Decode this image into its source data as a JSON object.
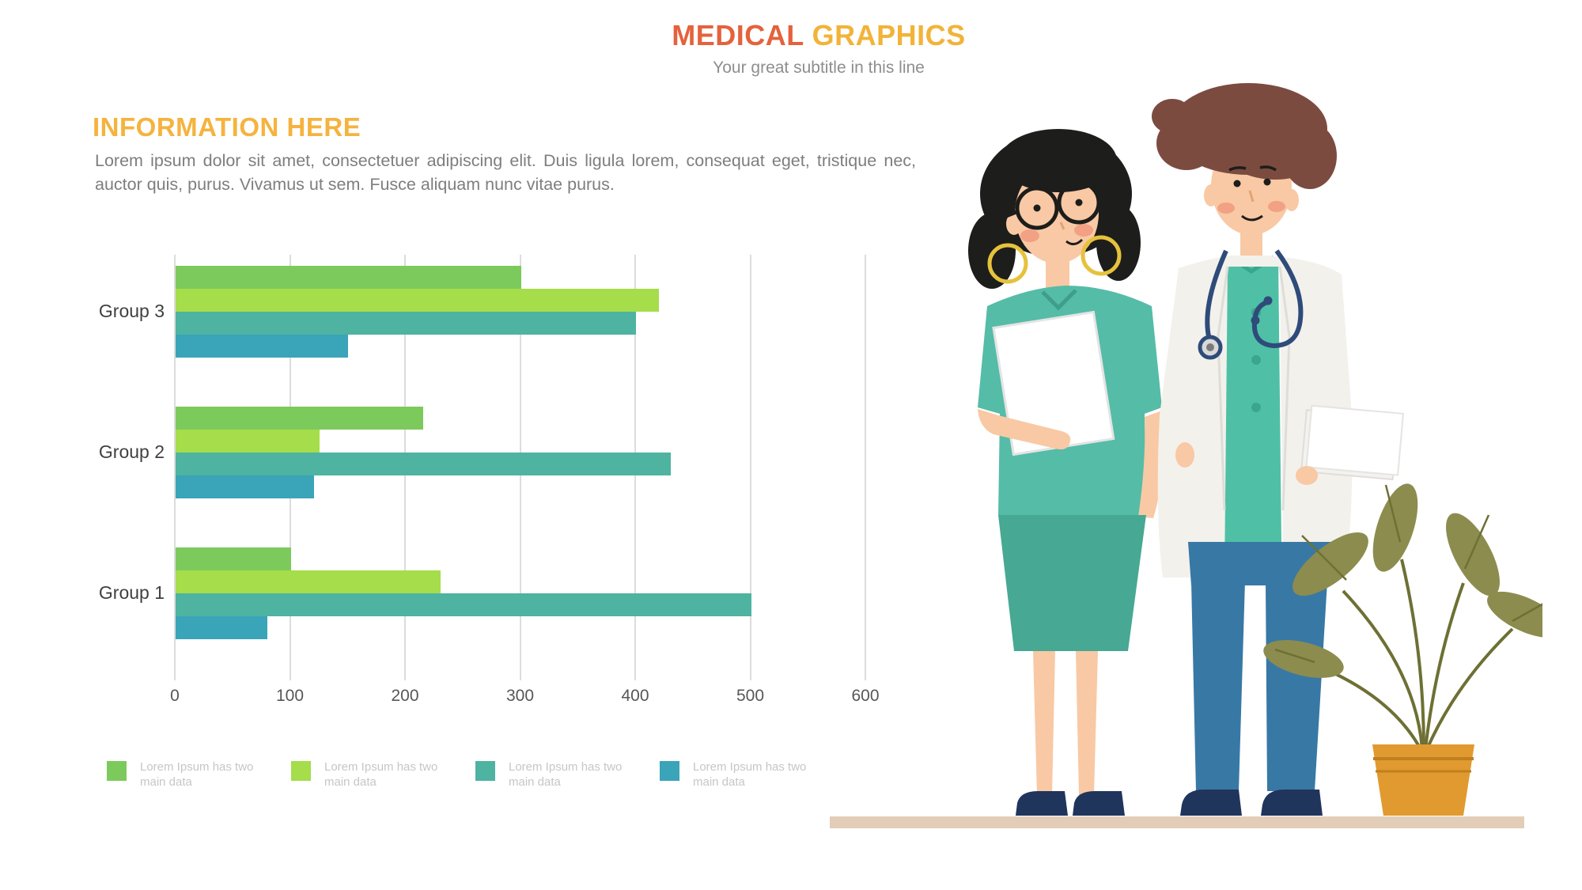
{
  "header": {
    "title_primary": "MEDICAL",
    "title_secondary": "GRAPHICS",
    "subtitle": "Your great subtitle in this line",
    "title_primary_color": "#E4623C",
    "title_secondary_color": "#F2B338"
  },
  "info": {
    "heading": "INFORMATION HERE",
    "heading_color": "#F5B33E",
    "body": "Lorem ipsum dolor sit amet, consectetuer adipiscing elit. Duis ligula lorem, consequat eget, tristique nec, auctor quis, purus. Vivamus ut sem. Fusce aliquam nunc vitae purus."
  },
  "chart_data": {
    "type": "bar",
    "orientation": "horizontal",
    "title": "",
    "categories": [
      "Group 3",
      "Group 2",
      "Group 1"
    ],
    "series": [
      {
        "legend_label": "Lorem Ipsum has two main data",
        "color": "#7CCA5C",
        "values": [
          300,
          215,
          100
        ]
      },
      {
        "legend_label": "Lorem Ipsum has two main data",
        "color": "#A5DD4B",
        "values": [
          420,
          125,
          230
        ]
      },
      {
        "legend_label": "Lorem Ipsum has two main data",
        "color": "#4EB3A0",
        "values": [
          400,
          430,
          500
        ]
      },
      {
        "legend_label": "Lorem Ipsum has two main data",
        "color": "#3AA4B9",
        "values": [
          150,
          120,
          80
        ]
      }
    ],
    "xlim": [
      0,
      600
    ],
    "xticks": [
      "0",
      "100",
      "200",
      "300",
      "400",
      "500",
      "600"
    ],
    "grid": "vertical-gridlines",
    "gridline_color": "#DCDCDC",
    "legend_position": "bottom-left"
  },
  "legend": {
    "items": [
      {
        "label": "Lorem Ipsum has two main data",
        "color": "#7CCA5C"
      },
      {
        "label": "Lorem Ipsum has two main data",
        "color": "#A5DD4B"
      },
      {
        "label": "Lorem Ipsum has two main data",
        "color": "#4EB3A0"
      },
      {
        "label": "Lorem Ipsum has two main data",
        "color": "#3AA4B9"
      }
    ]
  },
  "illustration": {
    "description": "Two cartoon medical professionals (nurse with clipboard, doctor with stethoscope and papers) standing on a tan floor next to a potted plant",
    "palette": {
      "skin": "#F8C9A4",
      "blush": "#F2A184",
      "nurse_hair": "#1D1D1B",
      "doctor_hair": "#7C4B40",
      "scrub_top": "#55BCA7",
      "skirt": "#47A893",
      "lab_coat": "#F3F1EC",
      "doctor_shirt": "#4FC0A5",
      "pants": "#3878A5",
      "shoes": "#20355C",
      "stethoscope": "#2E4B7A",
      "earrings": "#E6C23C",
      "pot": "#E19A2F",
      "leaves": "#8C8C4F",
      "floor": "#E3CDB8",
      "paper": "#FFFFFF"
    }
  }
}
